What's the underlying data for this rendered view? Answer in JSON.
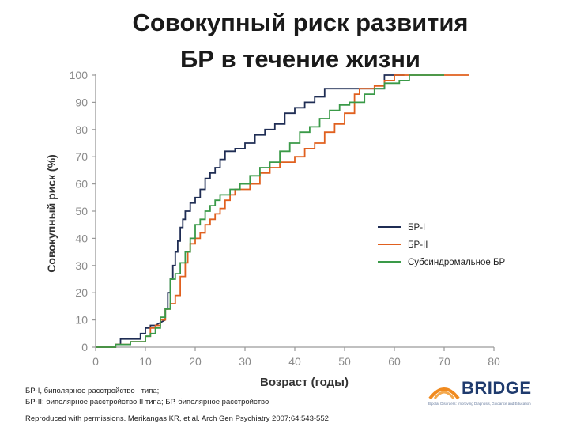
{
  "title_lines": [
    "Совокупный риск развития",
    "БР в течение жизни"
  ],
  "chart_data": {
    "type": "line",
    "xlabel": "Возраст (годы)",
    "ylabel": "Совокупный риск (%)",
    "xlim": [
      0,
      80
    ],
    "ylim": [
      0,
      100
    ],
    "x_ticks": [
      0,
      10,
      20,
      30,
      40,
      50,
      60,
      70,
      80
    ],
    "y_ticks": [
      0,
      10,
      20,
      30,
      40,
      50,
      60,
      70,
      80,
      90,
      100
    ],
    "grid": false,
    "legend_position": "right",
    "series": [
      {
        "name": "БР-I",
        "color": "#1f2d54",
        "points": [
          [
            0,
            0
          ],
          [
            4,
            0
          ],
          [
            4,
            1
          ],
          [
            5,
            1
          ],
          [
            5,
            3
          ],
          [
            9,
            3
          ],
          [
            9,
            5
          ],
          [
            10,
            5
          ],
          [
            10,
            7
          ],
          [
            11,
            7
          ],
          [
            11,
            8
          ],
          [
            12,
            8
          ],
          [
            13,
            9
          ],
          [
            14,
            10
          ],
          [
            14,
            14
          ],
          [
            14.5,
            14
          ],
          [
            14.5,
            20
          ],
          [
            15,
            20
          ],
          [
            15,
            25
          ],
          [
            15.5,
            25
          ],
          [
            15.5,
            30
          ],
          [
            16,
            30
          ],
          [
            16,
            35
          ],
          [
            16.5,
            35
          ],
          [
            16.5,
            39
          ],
          [
            17,
            39
          ],
          [
            17,
            44
          ],
          [
            17.5,
            44
          ],
          [
            17.5,
            47
          ],
          [
            18,
            47
          ],
          [
            18,
            50
          ],
          [
            19,
            50
          ],
          [
            19,
            53
          ],
          [
            20,
            53
          ],
          [
            20,
            55
          ],
          [
            21,
            55
          ],
          [
            21,
            58
          ],
          [
            22,
            58
          ],
          [
            22,
            62
          ],
          [
            23,
            62
          ],
          [
            23,
            64
          ],
          [
            24,
            64
          ],
          [
            24,
            66
          ],
          [
            25,
            66
          ],
          [
            25,
            69
          ],
          [
            26,
            69
          ],
          [
            26,
            72
          ],
          [
            28,
            72
          ],
          [
            28,
            73
          ],
          [
            30,
            73
          ],
          [
            30,
            75
          ],
          [
            32,
            75
          ],
          [
            32,
            78
          ],
          [
            34,
            78
          ],
          [
            34,
            80
          ],
          [
            36,
            80
          ],
          [
            36,
            82
          ],
          [
            38,
            82
          ],
          [
            38,
            86
          ],
          [
            40,
            86
          ],
          [
            40,
            88
          ],
          [
            42,
            88
          ],
          [
            42,
            90
          ],
          [
            44,
            90
          ],
          [
            44,
            92
          ],
          [
            46,
            92
          ],
          [
            46,
            95
          ],
          [
            54,
            95
          ],
          [
            54,
            95
          ],
          [
            58,
            95
          ],
          [
            58,
            100
          ],
          [
            62,
            100
          ]
        ]
      },
      {
        "name": "БР-II",
        "color": "#e0601f",
        "points": [
          [
            0,
            0
          ],
          [
            4,
            0
          ],
          [
            4,
            1
          ],
          [
            7,
            1
          ],
          [
            7,
            2
          ],
          [
            10,
            2
          ],
          [
            10,
            4
          ],
          [
            11,
            4
          ],
          [
            11,
            7
          ],
          [
            12,
            7
          ],
          [
            12,
            8
          ],
          [
            13,
            8
          ],
          [
            13,
            10
          ],
          [
            14,
            10
          ],
          [
            14,
            14
          ],
          [
            15,
            14
          ],
          [
            15,
            16
          ],
          [
            16,
            16
          ],
          [
            16,
            19
          ],
          [
            17,
            19
          ],
          [
            17,
            26
          ],
          [
            18,
            26
          ],
          [
            18,
            31
          ],
          [
            18.5,
            31
          ],
          [
            18.5,
            35
          ],
          [
            19,
            35
          ],
          [
            19,
            38
          ],
          [
            20,
            38
          ],
          [
            20,
            40
          ],
          [
            21,
            40
          ],
          [
            21,
            42
          ],
          [
            22,
            42
          ],
          [
            22,
            45
          ],
          [
            23,
            45
          ],
          [
            23,
            47
          ],
          [
            24,
            47
          ],
          [
            24,
            49
          ],
          [
            25,
            49
          ],
          [
            25,
            51
          ],
          [
            26,
            51
          ],
          [
            26,
            54
          ],
          [
            27,
            54
          ],
          [
            27,
            56
          ],
          [
            28,
            56
          ],
          [
            28,
            58
          ],
          [
            31,
            58
          ],
          [
            31,
            60
          ],
          [
            33,
            60
          ],
          [
            33,
            64
          ],
          [
            35,
            64
          ],
          [
            35,
            66
          ],
          [
            37,
            66
          ],
          [
            37,
            68
          ],
          [
            40,
            68
          ],
          [
            40,
            70
          ],
          [
            42,
            70
          ],
          [
            42,
            73
          ],
          [
            44,
            73
          ],
          [
            44,
            75
          ],
          [
            46,
            75
          ],
          [
            46,
            79
          ],
          [
            48,
            79
          ],
          [
            48,
            82
          ],
          [
            50,
            82
          ],
          [
            50,
            86
          ],
          [
            52,
            86
          ],
          [
            52,
            93
          ],
          [
            53,
            93
          ],
          [
            53,
            95
          ],
          [
            56,
            95
          ],
          [
            56,
            96
          ],
          [
            58,
            96
          ],
          [
            58,
            98
          ],
          [
            60,
            98
          ],
          [
            60,
            100
          ],
          [
            75,
            100
          ]
        ]
      },
      {
        "name": "Субсиндромальное БР",
        "color": "#3a9a48",
        "points": [
          [
            0,
            0
          ],
          [
            4,
            0
          ],
          [
            4,
            1
          ],
          [
            7,
            1
          ],
          [
            7,
            2
          ],
          [
            10,
            2
          ],
          [
            10,
            4
          ],
          [
            11,
            4
          ],
          [
            11,
            5
          ],
          [
            12,
            5
          ],
          [
            12,
            7
          ],
          [
            13,
            7
          ],
          [
            13,
            11
          ],
          [
            14,
            11
          ],
          [
            14,
            14
          ],
          [
            15,
            14
          ],
          [
            15,
            25
          ],
          [
            16,
            25
          ],
          [
            16,
            27
          ],
          [
            17,
            27
          ],
          [
            17,
            31
          ],
          [
            18,
            31
          ],
          [
            18,
            35
          ],
          [
            19,
            35
          ],
          [
            19,
            40
          ],
          [
            20,
            40
          ],
          [
            20,
            45
          ],
          [
            21,
            45
          ],
          [
            21,
            47
          ],
          [
            22,
            47
          ],
          [
            22,
            50
          ],
          [
            23,
            50
          ],
          [
            23,
            52
          ],
          [
            24,
            52
          ],
          [
            24,
            54
          ],
          [
            25,
            54
          ],
          [
            25,
            56
          ],
          [
            27,
            56
          ],
          [
            27,
            58
          ],
          [
            29,
            58
          ],
          [
            29,
            60
          ],
          [
            31,
            60
          ],
          [
            31,
            63
          ],
          [
            33,
            63
          ],
          [
            33,
            66
          ],
          [
            35,
            66
          ],
          [
            35,
            68
          ],
          [
            37,
            68
          ],
          [
            37,
            72
          ],
          [
            39,
            72
          ],
          [
            39,
            75
          ],
          [
            41,
            75
          ],
          [
            41,
            79
          ],
          [
            43,
            79
          ],
          [
            43,
            81
          ],
          [
            45,
            81
          ],
          [
            45,
            84
          ],
          [
            47,
            84
          ],
          [
            47,
            87
          ],
          [
            49,
            87
          ],
          [
            49,
            89
          ],
          [
            51,
            89
          ],
          [
            51,
            90
          ],
          [
            54,
            90
          ],
          [
            54,
            93
          ],
          [
            56,
            93
          ],
          [
            56,
            95
          ],
          [
            58,
            95
          ],
          [
            58,
            97
          ],
          [
            61,
            97
          ],
          [
            61,
            98
          ],
          [
            63,
            98
          ],
          [
            63,
            100
          ],
          [
            70,
            100
          ]
        ]
      }
    ]
  },
  "footnotes": [
    "БР-I, биполярное расстройство I типа;",
    "БР-II; биполярное расстройство II типа; БР, биполярное расстройство",
    "Reproduced with permissions. Merikangas KR, et al. Arch Gen Psychiatry 2007;64:543-552"
  ],
  "logo": {
    "word": "BRIDGE",
    "tagline": "Bipolar Disorders: Improving Diagnosis, Guidance and Education",
    "colors": {
      "accent": "#f08a1f",
      "brand": "#1f3b6e"
    }
  },
  "colors": {
    "axis": "#9a9a9a",
    "tick_label": "#8a8a8a",
    "label": "#333333"
  }
}
